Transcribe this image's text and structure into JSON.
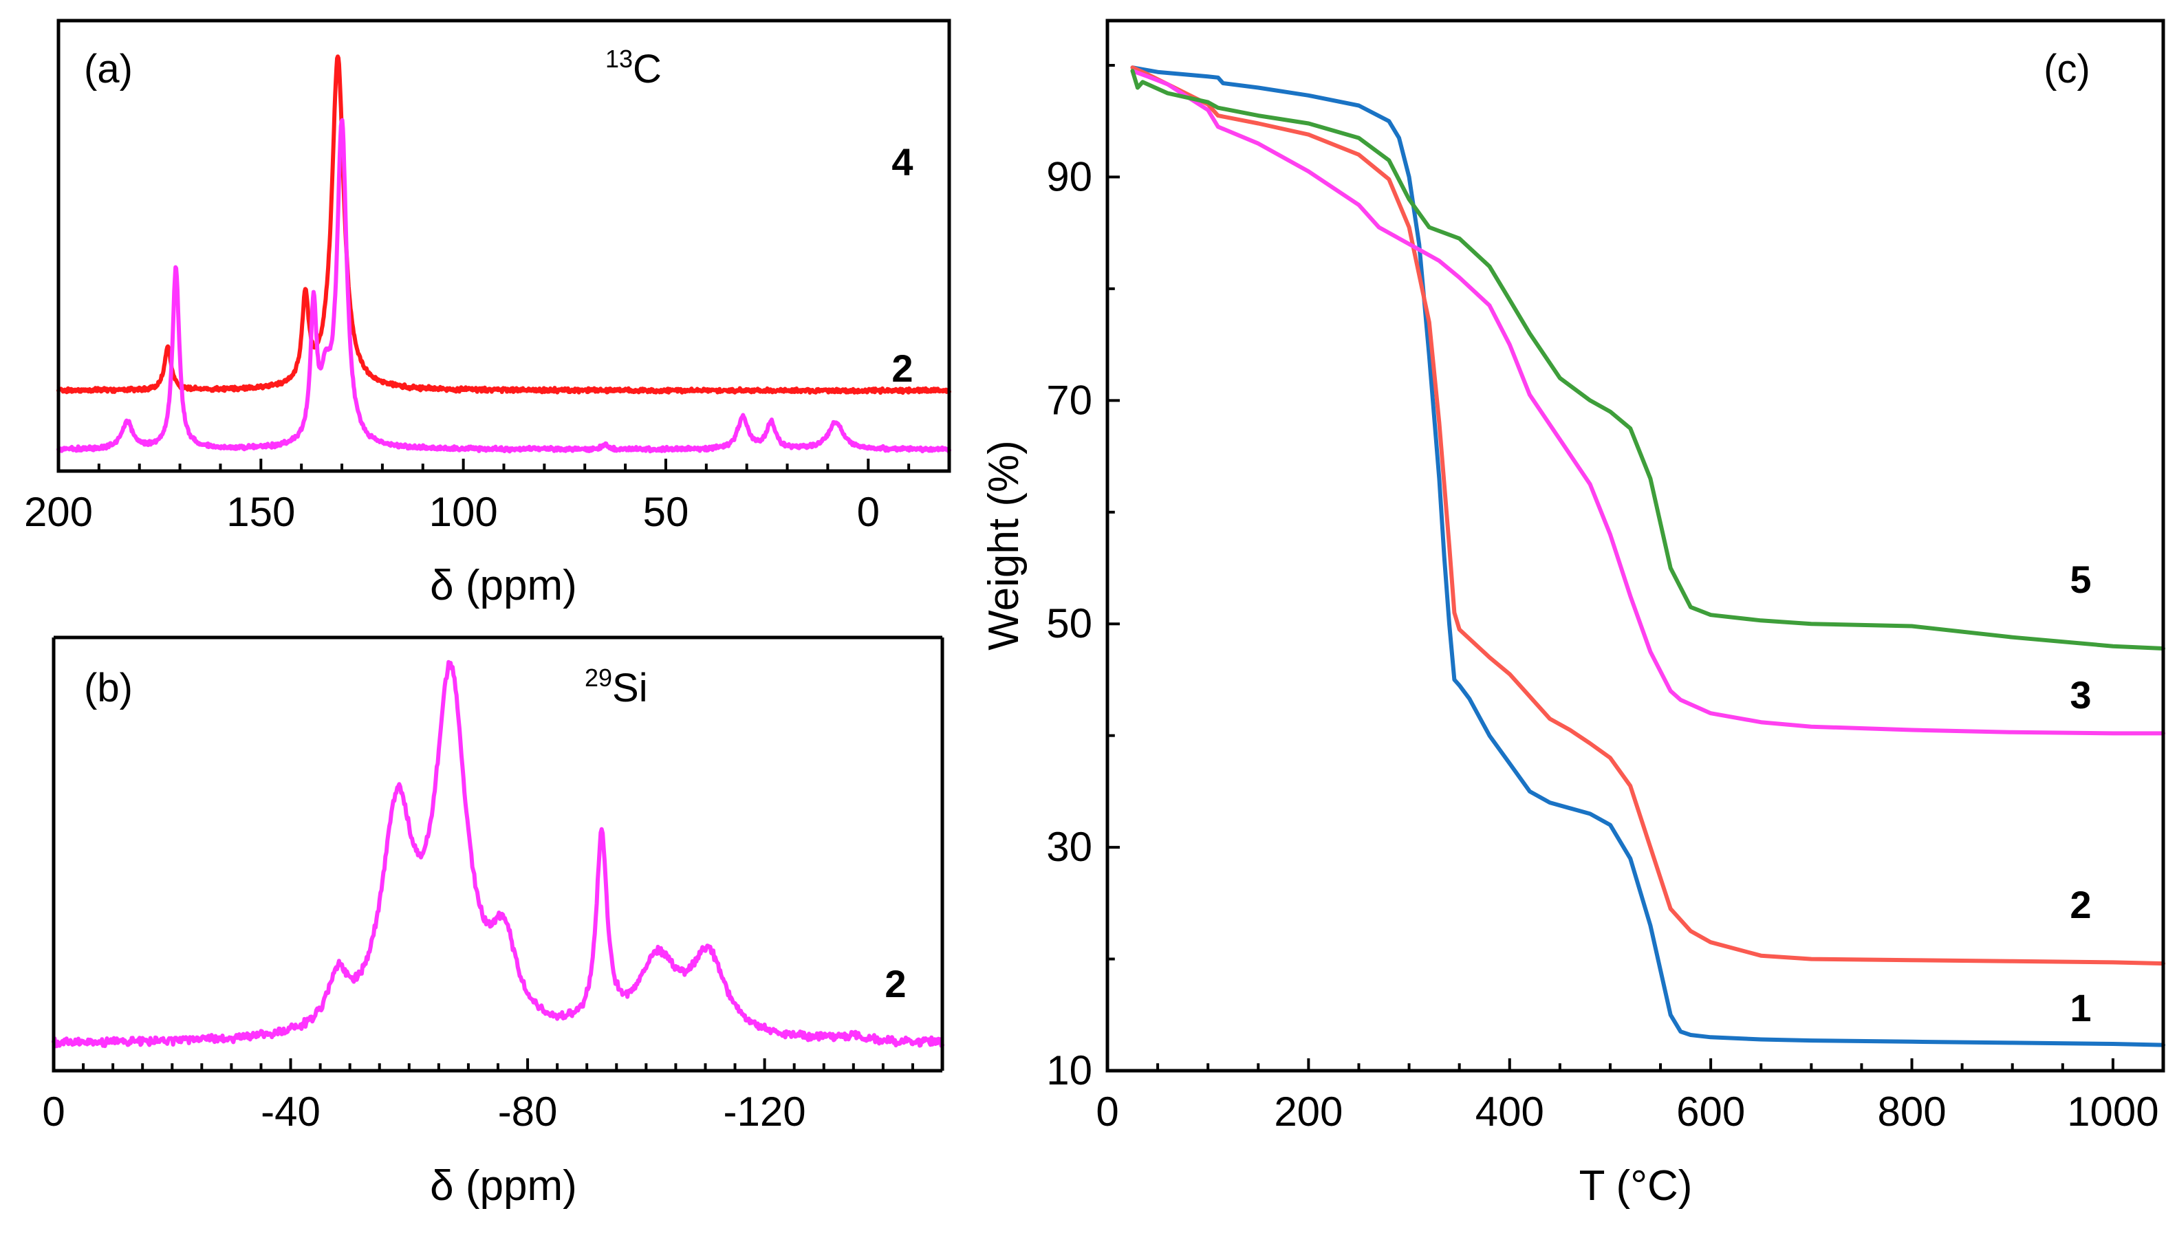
{
  "chart_data": [
    {
      "id": "a",
      "type": "line",
      "panel_label": "(a)",
      "nucleus": {
        "mass": "13",
        "element": "C"
      },
      "xlabel": "δ (ppm)",
      "xlim": [
        200,
        -20
      ],
      "xticks": [
        200,
        150,
        100,
        50,
        0
      ],
      "xtick_labels": [
        "200",
        "150",
        "100",
        "50",
        "0"
      ],
      "series": [
        {
          "name": "4",
          "color": "#ff1a1a",
          "baseline": 0.55,
          "scale": 1.0,
          "peaks": [
            [
              131,
              3.1,
              1.8
            ],
            [
              139,
              0.8,
              1.0
            ],
            [
              173,
              0.4,
              1.0
            ]
          ]
        },
        {
          "name": "2",
          "color": "#ff33ff",
          "baseline": 0.0,
          "scale": 1.0,
          "peaks": [
            [
              130,
              3.0,
              1.4
            ],
            [
              137,
              1.25,
              0.9
            ],
            [
              134,
              0.5,
              1.5
            ],
            [
              171,
              1.7,
              1.0
            ],
            [
              183,
              0.25,
              1.6
            ],
            [
              31,
              0.3,
              1.5
            ],
            [
              24,
              0.25,
              1.3
            ],
            [
              8,
              0.25,
              2.2
            ],
            [
              65,
              0.04,
              1.0
            ]
          ]
        }
      ],
      "series_labels": [
        "4",
        "2"
      ],
      "ylim": [
        -0.2,
        4.0
      ]
    },
    {
      "id": "b",
      "type": "line",
      "panel_label": "(b)",
      "nucleus": {
        "mass": "29",
        "element": "Si"
      },
      "xlabel": "δ (ppm)",
      "xlim": [
        0,
        -150
      ],
      "xticks": [
        0,
        -40,
        -80,
        -120
      ],
      "xtick_labels": [
        "0",
        "-40",
        "-80",
        "-120"
      ],
      "series": [
        {
          "name": "2",
          "color": "#ff33ff",
          "baseline": 0.0,
          "peaks": [
            [
              -67,
              3.95,
              3.2
            ],
            [
              -58,
              2.4,
              3.2
            ],
            [
              -48,
              0.55,
              2.0
            ],
            [
              -76,
              0.9,
              2.5
            ],
            [
              -92.5,
              2.15,
              1.1
            ],
            [
              -102,
              0.85,
              4.0
            ],
            [
              -110.5,
              0.9,
              3.5
            ],
            [
              -134,
              0.05,
              3.0
            ]
          ]
        }
      ],
      "series_labels": [
        "2"
      ],
      "ylim": [
        -0.3,
        4.6
      ]
    },
    {
      "id": "c",
      "type": "line",
      "panel_label": "(c)",
      "xlabel": "T (°C)",
      "ylabel": "Weight (%)",
      "xlim": [
        0,
        1050
      ],
      "ylim": [
        10,
        104
      ],
      "xticks": [
        0,
        200,
        400,
        600,
        800,
        1000
      ],
      "xtick_labels": [
        "0",
        "200",
        "400",
        "600",
        "800",
        "1000"
      ],
      "yticks": [
        10,
        30,
        50,
        70,
        90
      ],
      "ytick_labels": [
        "10",
        "30",
        "50",
        "70",
        "90"
      ],
      "series": [
        {
          "name": "1",
          "color": "#1a73c4",
          "x": [
            25,
            50,
            100,
            110,
            115,
            150,
            200,
            250,
            280,
            290,
            300,
            310,
            320,
            330,
            335,
            340,
            345,
            350,
            360,
            380,
            400,
            420,
            440,
            460,
            480,
            500,
            520,
            540,
            560,
            570,
            580,
            600,
            650,
            700,
            800,
            900,
            1000,
            1050
          ],
          "y": [
            99.8,
            99.4,
            99.0,
            98.9,
            98.4,
            98.0,
            97.3,
            96.4,
            95.0,
            93.5,
            90.0,
            84.0,
            74.0,
            63.0,
            56.0,
            50.0,
            45.0,
            44.5,
            43.3,
            40.0,
            37.5,
            35.0,
            34.0,
            33.5,
            33.0,
            32.0,
            29.0,
            23.0,
            15.0,
            13.5,
            13.2,
            13.0,
            12.8,
            12.7,
            12.6,
            12.5,
            12.4,
            12.3
          ]
        },
        {
          "name": "2",
          "color": "#fa5a50",
          "x": [
            25,
            40,
            100,
            110,
            150,
            200,
            250,
            280,
            300,
            320,
            330,
            340,
            345,
            350,
            380,
            400,
            420,
            440,
            460,
            480,
            500,
            520,
            540,
            560,
            580,
            600,
            650,
            700,
            800,
            900,
            1000,
            1050
          ],
          "y": [
            99.8,
            99.2,
            96.5,
            95.5,
            94.8,
            93.8,
            92.0,
            89.8,
            85.5,
            77.0,
            68.0,
            57.0,
            51.0,
            49.5,
            47.0,
            45.5,
            43.5,
            41.5,
            40.5,
            39.3,
            38.0,
            35.5,
            30.0,
            24.5,
            22.5,
            21.5,
            20.3,
            20.0,
            19.9,
            19.8,
            19.7,
            19.6
          ]
        },
        {
          "name": "3",
          "color": "#ff40f0",
          "x": [
            25,
            40,
            60,
            100,
            110,
            150,
            200,
            250,
            270,
            300,
            330,
            350,
            380,
            400,
            420,
            450,
            480,
            500,
            520,
            540,
            560,
            570,
            580,
            600,
            650,
            700,
            800,
            900,
            1000,
            1050
          ],
          "y": [
            99.5,
            99.0,
            98.3,
            96.0,
            94.5,
            93.0,
            90.5,
            87.5,
            85.5,
            84.0,
            82.5,
            81.0,
            78.5,
            75.0,
            70.5,
            66.5,
            62.5,
            58.0,
            52.5,
            47.5,
            44.0,
            43.2,
            42.8,
            42.0,
            41.2,
            40.8,
            40.5,
            40.3,
            40.2,
            40.2
          ]
        },
        {
          "name": "5",
          "color": "#3e9e3a",
          "x": [
            25,
            30,
            35,
            60,
            100,
            110,
            150,
            200,
            250,
            280,
            300,
            320,
            350,
            380,
            400,
            420,
            450,
            480,
            500,
            520,
            540,
            560,
            580,
            600,
            650,
            700,
            800,
            900,
            1000,
            1050
          ],
          "y": [
            99.5,
            98.0,
            98.5,
            97.5,
            96.7,
            96.2,
            95.5,
            94.8,
            93.5,
            91.5,
            88.0,
            85.5,
            84.5,
            82.0,
            79.0,
            76.0,
            72.0,
            70.0,
            69.0,
            67.5,
            63.0,
            55.0,
            51.5,
            50.8,
            50.3,
            50.0,
            49.8,
            48.8,
            48.0,
            47.8
          ]
        }
      ],
      "series_labels": [
        "5",
        "3",
        "2",
        "1"
      ]
    }
  ]
}
